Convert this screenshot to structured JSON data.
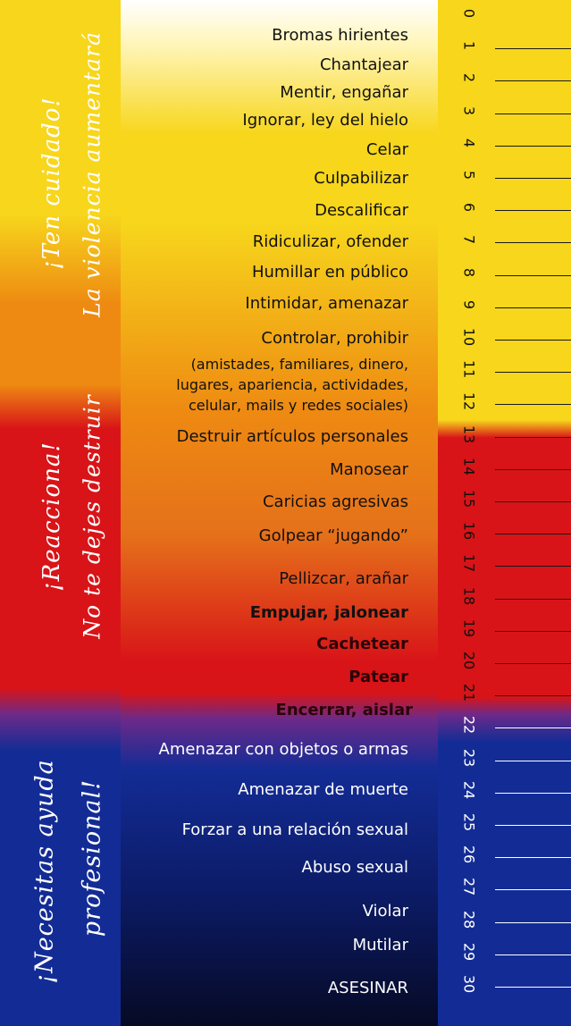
{
  "warnings": {
    "first": {
      "line1": "¡Ten cuidado!",
      "line2": "La violencia aumentará"
    },
    "second": {
      "line1": "¡Reacciona!",
      "line2": "No te dejes destruir"
    },
    "third": {
      "line1": "¡Necesitas ayuda",
      "line2": "profesional!"
    }
  },
  "items": [
    {
      "text": "Bromas hirientes"
    },
    {
      "text": "Chantajear"
    },
    {
      "text": "Mentir, engañar"
    },
    {
      "text": "Ignorar, ley del hielo"
    },
    {
      "text": "Celar"
    },
    {
      "text": "Culpabilizar"
    },
    {
      "text": "Descalificar"
    },
    {
      "text": "Ridiculizar, ofender"
    },
    {
      "text": "Humillar en público"
    },
    {
      "text": "Intimidar, amenazar"
    },
    {
      "text": "Controlar, prohibir"
    },
    {
      "text": "(amistades, familiares, dinero,"
    },
    {
      "text": "lugares, apariencia, actividades,"
    },
    {
      "text": "celular, mails y redes sociales)"
    },
    {
      "text": "Destruir artículos personales"
    },
    {
      "text": "Manosear"
    },
    {
      "text": "Caricias agresivas"
    },
    {
      "text": "Golpear  “jugando”"
    },
    {
      "text": "Pellizcar, arañar"
    },
    {
      "text": "Empujar, jalonear"
    },
    {
      "text": "Cachetear"
    },
    {
      "text": "Patear"
    },
    {
      "text": "Encerrar, aislar"
    },
    {
      "text": "Amenazar con objetos o armas"
    },
    {
      "text": "Amenazar de muerte"
    },
    {
      "text": "Forzar a una relación sexual"
    },
    {
      "text": "Abuso sexual"
    },
    {
      "text": "Violar"
    },
    {
      "text": "Mutilar"
    },
    {
      "text": "ASESINAR"
    }
  ],
  "scale": [
    "0",
    "1",
    "2",
    "3",
    "4",
    "5",
    "6",
    "7",
    "8",
    "9",
    "10",
    "11",
    "12",
    "13",
    "14",
    "15",
    "16",
    "17",
    "18",
    "19",
    "20",
    "21",
    "22",
    "23",
    "24",
    "25",
    "26",
    "27",
    "28",
    "29",
    "30"
  ],
  "colors": {
    "yellow": "#f7d61c",
    "orange": "#ee8a12",
    "red": "#d81418",
    "purple": "#6b2a8a",
    "blue": "#132c95",
    "navy": "#060a24"
  }
}
